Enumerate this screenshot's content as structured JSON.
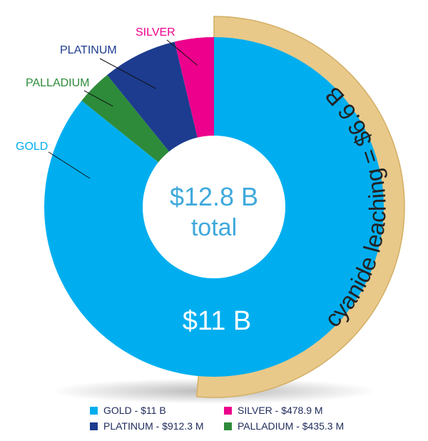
{
  "chart_data": {
    "type": "pie",
    "donut": true,
    "center_label": {
      "line1": "$12.8 B",
      "line2": "total"
    },
    "slices": [
      {
        "name": "GOLD",
        "value": 11000,
        "display": "$11 B",
        "color": "#00aeef",
        "label": "GOLD"
      },
      {
        "name": "PLATINUM",
        "value": 912.3,
        "display": "$912.3 M",
        "color": "#1d3c8f",
        "label": "PLATINUM"
      },
      {
        "name": "PALLADIUM",
        "value": 435.3,
        "display": "$435.3 M",
        "color": "#2e8b3a",
        "label": "PALLADIUM"
      },
      {
        "name": "SILVER",
        "value": 478.9,
        "display": "$478.9 M",
        "color": "#ec008c",
        "label": "SILVER"
      }
    ],
    "slice_value_label": "$11 B",
    "arc_annotation": {
      "text": "cyanide leaching = $6.6 B",
      "value": 6.6
    },
    "legend": [
      {
        "text": "GOLD - $11 B",
        "color": "#00aeef"
      },
      {
        "text": "SILVER - $478.9 M",
        "color": "#ec008c"
      },
      {
        "text": "PLATINUM - $912.3 M",
        "color": "#1d3c8f"
      },
      {
        "text": "PALLADIUM - $435.3 M",
        "color": "#2e8b3a"
      }
    ]
  },
  "colors": {
    "band": "#e8c98a",
    "band_edge": "#d3ae64",
    "center_text": "#3fa9dc"
  }
}
